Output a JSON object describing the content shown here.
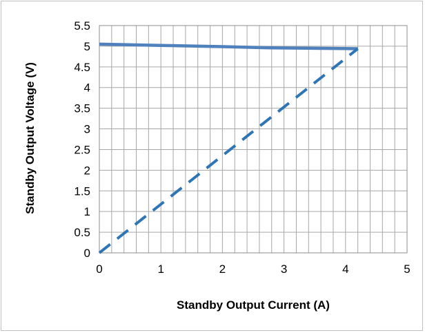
{
  "chart_data": {
    "type": "line",
    "xlabel": "Standby Output Current (A)",
    "ylabel": "Standby Output Voltage (V)",
    "xlim": [
      0,
      5
    ],
    "ylim": [
      0,
      5.5
    ],
    "x_ticks": [
      "0",
      "1",
      "2",
      "3",
      "4",
      "5"
    ],
    "y_ticks": [
      "0",
      "0.5",
      "1",
      "1.5",
      "2",
      "2.5",
      "3",
      "3.5",
      "4",
      "4.5",
      "5",
      "5.5"
    ],
    "grid": true,
    "legend": "none",
    "series": [
      {
        "style": "solid",
        "color": "#4f81bd",
        "x": [
          0,
          1,
          2,
          2.8,
          3.5,
          4.2
        ],
        "y": [
          5.05,
          5.02,
          4.99,
          4.96,
          4.95,
          4.94
        ]
      },
      {
        "style": "dashed",
        "color": "#2e75b6",
        "x": [
          0,
          4.2
        ],
        "y": [
          0,
          4.94
        ]
      }
    ]
  }
}
